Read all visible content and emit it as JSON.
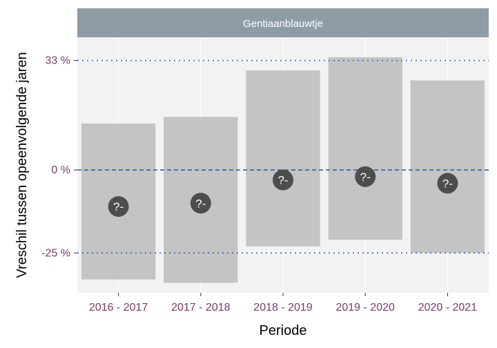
{
  "chart_data": {
    "type": "bar",
    "panel_title": "Gentiaanblauwtje",
    "xlabel": "Periode",
    "ylabel": "Vreschil tussen opeenvolgende jaren",
    "categories": [
      "2016 - 2017",
      "2017 - 2018",
      "2018 - 2019",
      "2019 - 2020",
      "2020 - 2021"
    ],
    "ylim": [
      -37,
      40
    ],
    "y_ticks": [
      {
        "value": 33,
        "label": "33 %"
      },
      {
        "value": 0,
        "label": "0 %"
      },
      {
        "value": -25,
        "label": "-25 %"
      }
    ],
    "reference_lines": [
      {
        "value": 33,
        "style": "dotted"
      },
      {
        "value": 0,
        "style": "dashed"
      },
      {
        "value": -25,
        "style": "dotted"
      }
    ],
    "series": [
      {
        "estimate": [
          -11,
          -10,
          -3,
          -2,
          -4
        ],
        "lower": [
          -33,
          -34,
          -23,
          -21,
          -25
        ],
        "upper": [
          14,
          16,
          30,
          34,
          27
        ],
        "point_labels": [
          "?-",
          "?-",
          "?-",
          "?-",
          "?-"
        ]
      }
    ],
    "grid": true,
    "legend": "none",
    "colors": {
      "panel_background": "#f2f2f2",
      "gridline": "#ffffff",
      "interval_bar": "#c4c4c4",
      "point": "#4d4d4d",
      "reference_line": "#3b5a9a",
      "strip": "#8e9ca6",
      "tick_label": "#7a3c63"
    }
  }
}
